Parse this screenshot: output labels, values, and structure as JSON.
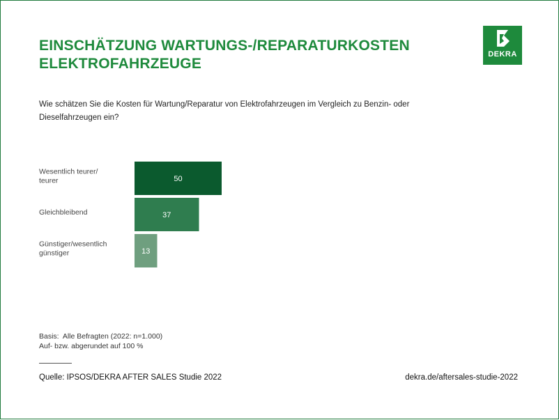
{
  "header": {
    "title_line1": "EINSCHÄTZUNG WARTUNGS-/REPARATURKOSTEN",
    "title_line2": "ELEKTROFAHRZEUGE",
    "logo_text": "DEKRA",
    "logo_icon": "dekra-logo-icon",
    "brand_color": "#1e8a3c"
  },
  "question": "Wie schätzen Sie die Kosten für Wartung/Reparatur von Elektrofahrzeugen im Vergleich zu Benzin- oder Dieselfahrzeugen ein?",
  "chart_data": {
    "type": "bar",
    "orientation": "horizontal",
    "categories": [
      [
        "Wesentlich teurer/",
        "teurer"
      ],
      [
        "Gleichbleibend"
      ],
      [
        "Günstiger/wesentlich",
        "günstiger"
      ]
    ],
    "values": [
      50,
      37,
      13
    ],
    "value_labels": [
      "50",
      "37",
      "13"
    ],
    "colors": [
      "#0b5a2e",
      "#2f7d4f",
      "#6f9f7f"
    ],
    "xlim": [
      0,
      100
    ],
    "grid": false,
    "legend": "none"
  },
  "footnotes": {
    "basis": "Basis:  Alle Befragten (2022: n=1.000)",
    "rounding": "Auf- bzw. abgerundet auf 100 %"
  },
  "footer": {
    "source": "Quelle: IPSOS/DEKRA AFTER SALES Studie 2022",
    "url": "dekra.de/aftersales-studie-2022"
  }
}
